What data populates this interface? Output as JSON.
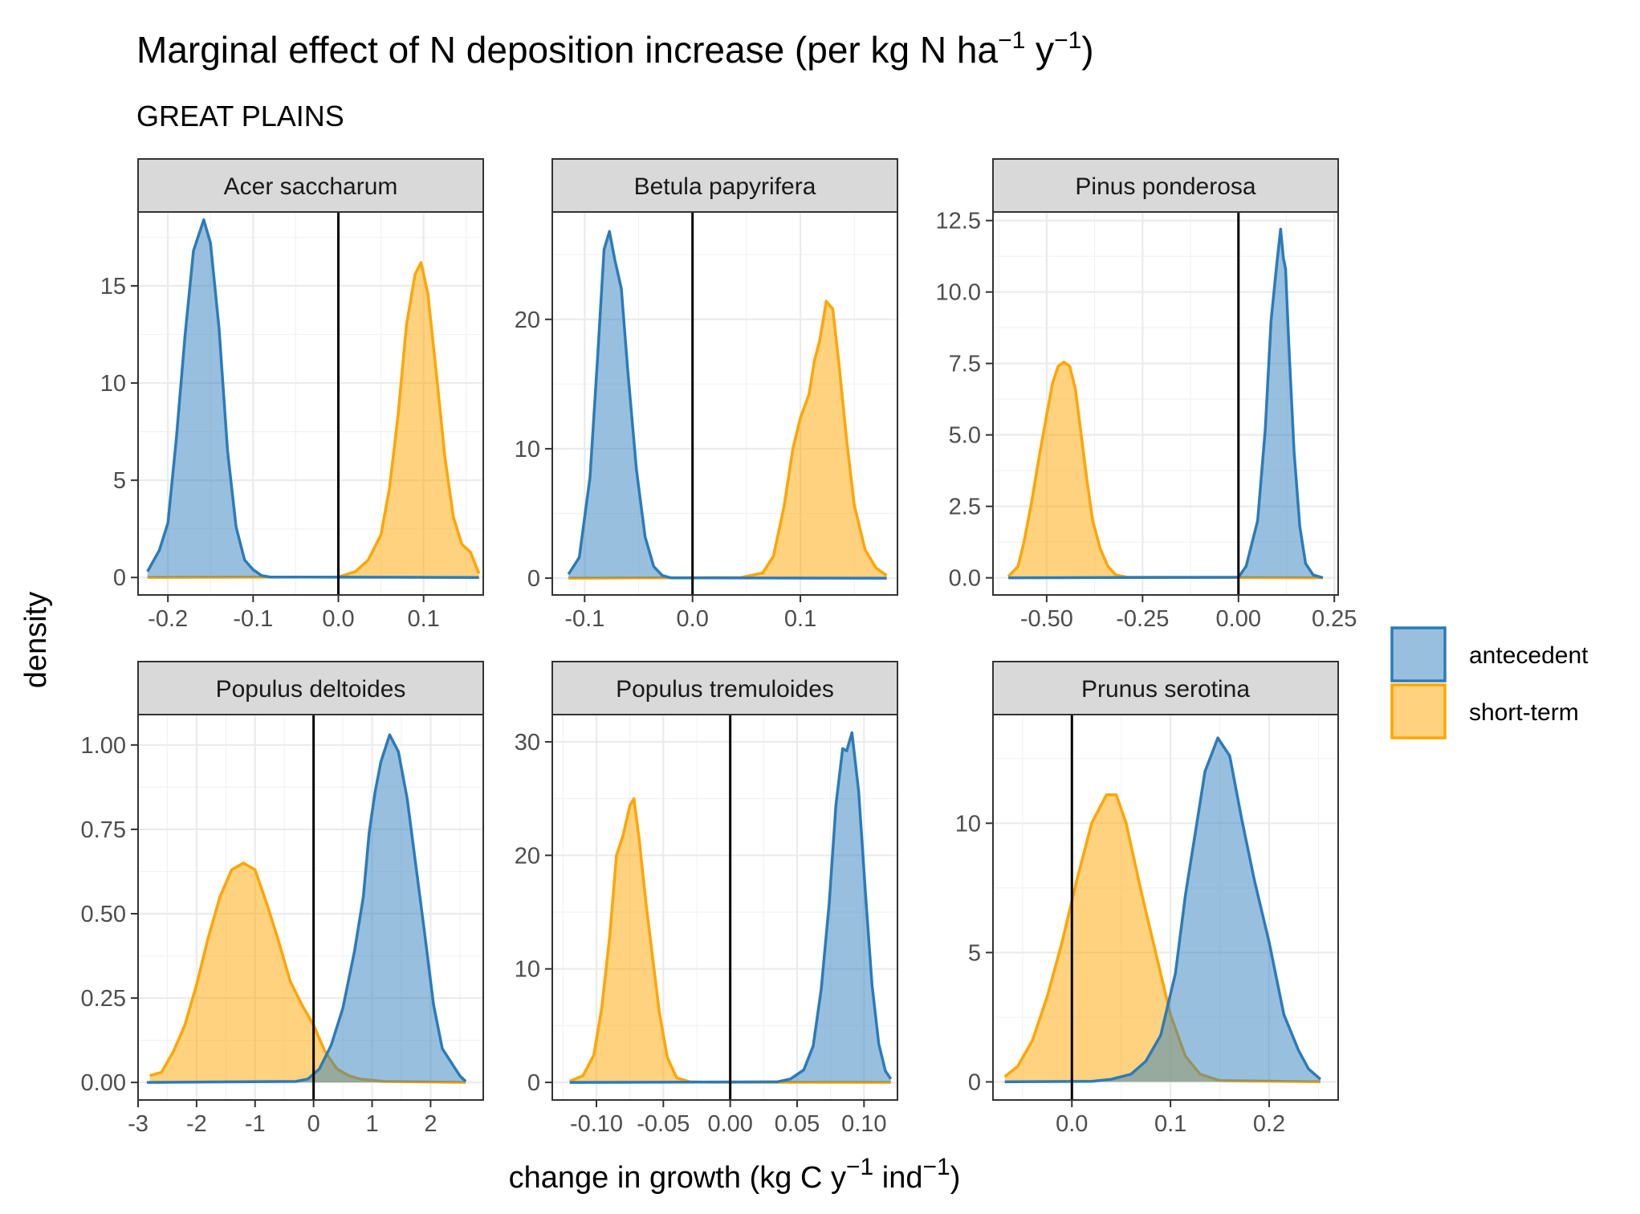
{
  "title_parts": [
    "Marginal effect of N deposition increase (per kg N ha",
    "−1",
    " y",
    "−1",
    ")"
  ],
  "subtitle": "GREAT PLAINS",
  "xlabel_parts": [
    "change in growth (kg C y",
    "−1",
    " ind",
    "−1",
    ")"
  ],
  "ylabel": "density",
  "legend": [
    {
      "label": "antecedent",
      "fill": "#3182bd",
      "stroke": "#2b7bba"
    },
    {
      "label": "short-term",
      "fill": "#ffa500",
      "stroke": "#ffa500"
    }
  ],
  "chart_data": [
    {
      "type": "area",
      "panel": "Acer saccharum",
      "xlim": [
        -0.235,
        0.17
      ],
      "ylim": [
        -0.9,
        18.8
      ],
      "x_ticks": [
        -0.2,
        -0.1,
        0.0,
        0.1
      ],
      "x_tick_labels": [
        "-0.2",
        "-0.1",
        "0.0",
        "0.1"
      ],
      "y_ticks": [
        0,
        5,
        10,
        15
      ],
      "y_tick_labels": [
        "0",
        "5",
        "10",
        "15"
      ],
      "vline": 0,
      "series": [
        {
          "name": "antecedent",
          "points": [
            [
              -0.224,
              0.3
            ],
            [
              -0.21,
              1.4
            ],
            [
              -0.2,
              2.8
            ],
            [
              -0.19,
              7.2
            ],
            [
              -0.18,
              12.4
            ],
            [
              -0.17,
              16.8
            ],
            [
              -0.158,
              18.4
            ],
            [
              -0.15,
              17.2
            ],
            [
              -0.14,
              12.8
            ],
            [
              -0.13,
              6.5
            ],
            [
              -0.12,
              2.6
            ],
            [
              -0.11,
              0.9
            ],
            [
              -0.1,
              0.4
            ],
            [
              -0.09,
              0.1
            ],
            [
              -0.08,
              0.02
            ],
            [
              0.165,
              0
            ]
          ]
        },
        {
          "name": "short-term",
          "points": [
            [
              -0.224,
              0
            ],
            [
              0.0,
              0.02
            ],
            [
              0.02,
              0.3
            ],
            [
              0.035,
              0.9
            ],
            [
              0.05,
              2.2
            ],
            [
              0.06,
              4.6
            ],
            [
              0.07,
              8.3
            ],
            [
              0.08,
              13.0
            ],
            [
              0.09,
              15.6
            ],
            [
              0.097,
              16.2
            ],
            [
              0.105,
              14.6
            ],
            [
              0.115,
              10.5
            ],
            [
              0.125,
              6.2
            ],
            [
              0.135,
              3.1
            ],
            [
              0.145,
              1.7
            ],
            [
              0.155,
              1.3
            ],
            [
              0.165,
              0.2
            ]
          ]
        }
      ]
    },
    {
      "type": "area",
      "panel": "Betula papyrifera",
      "xlim": [
        -0.13,
        0.19
      ],
      "ylim": [
        -1.3,
        28.3
      ],
      "x_ticks": [
        -0.1,
        0.0,
        0.1
      ],
      "x_tick_labels": [
        "-0.1",
        "0.0",
        "0.1"
      ],
      "y_ticks": [
        0,
        10,
        20
      ],
      "y_tick_labels": [
        "0",
        "10",
        "20"
      ],
      "vline": 0,
      "series": [
        {
          "name": "antecedent",
          "points": [
            [
              -0.115,
              0.3
            ],
            [
              -0.105,
              1.6
            ],
            [
              -0.095,
              7.8
            ],
            [
              -0.088,
              17.0
            ],
            [
              -0.082,
              25.4
            ],
            [
              -0.077,
              26.8
            ],
            [
              -0.072,
              24.6
            ],
            [
              -0.066,
              22.4
            ],
            [
              -0.06,
              16.0
            ],
            [
              -0.052,
              8.4
            ],
            [
              -0.044,
              3.2
            ],
            [
              -0.036,
              0.9
            ],
            [
              -0.028,
              0.2
            ],
            [
              -0.02,
              0.02
            ],
            [
              0.18,
              0
            ]
          ]
        },
        {
          "name": "short-term",
          "points": [
            [
              -0.115,
              0
            ],
            [
              0.045,
              0.05
            ],
            [
              0.065,
              0.4
            ],
            [
              0.075,
              1.7
            ],
            [
              0.085,
              5.6
            ],
            [
              0.093,
              10.0
            ],
            [
              0.1,
              12.4
            ],
            [
              0.108,
              14.2
            ],
            [
              0.113,
              16.8
            ],
            [
              0.118,
              18.4
            ],
            [
              0.124,
              21.4
            ],
            [
              0.13,
              20.8
            ],
            [
              0.136,
              16.4
            ],
            [
              0.143,
              10.6
            ],
            [
              0.15,
              5.6
            ],
            [
              0.16,
              2.2
            ],
            [
              0.17,
              0.8
            ],
            [
              0.18,
              0.2
            ]
          ]
        }
      ]
    },
    {
      "type": "area",
      "panel": "Pinus ponderosa",
      "xlim": [
        -0.64,
        0.26
      ],
      "ylim": [
        -0.6,
        12.8
      ],
      "x_ticks": [
        -0.5,
        -0.25,
        0.0,
        0.25
      ],
      "x_tick_labels": [
        "-0.50",
        "-0.25",
        "0.00",
        "0.25"
      ],
      "y_ticks": [
        0.0,
        2.5,
        5.0,
        7.5,
        10.0,
        12.5
      ],
      "y_tick_labels": [
        "0.0",
        "2.5",
        "5.0",
        "7.5",
        "10.0",
        "12.5"
      ],
      "vline": 0,
      "series": [
        {
          "name": "antecedent",
          "points": [
            [
              -0.6,
              0
            ],
            [
              0.0,
              0.02
            ],
            [
              0.02,
              0.4
            ],
            [
              0.05,
              2.0
            ],
            [
              0.07,
              5.2
            ],
            [
              0.085,
              9.0
            ],
            [
              0.1,
              11.0
            ],
            [
              0.11,
              12.2
            ],
            [
              0.117,
              11.2
            ],
            [
              0.123,
              10.8
            ],
            [
              0.132,
              8.0
            ],
            [
              0.145,
              4.4
            ],
            [
              0.16,
              1.8
            ],
            [
              0.175,
              0.5
            ],
            [
              0.195,
              0.1
            ],
            [
              0.22,
              0
            ]
          ]
        },
        {
          "name": "short-term",
          "points": [
            [
              -0.6,
              0.05
            ],
            [
              -0.575,
              0.4
            ],
            [
              -0.56,
              1.2
            ],
            [
              -0.54,
              2.6
            ],
            [
              -0.52,
              4.2
            ],
            [
              -0.5,
              5.7
            ],
            [
              -0.485,
              6.8
            ],
            [
              -0.47,
              7.4
            ],
            [
              -0.455,
              7.55
            ],
            [
              -0.44,
              7.4
            ],
            [
              -0.425,
              6.6
            ],
            [
              -0.41,
              5.0
            ],
            [
              -0.395,
              3.4
            ],
            [
              -0.38,
              2.0
            ],
            [
              -0.36,
              1.0
            ],
            [
              -0.34,
              0.4
            ],
            [
              -0.32,
              0.1
            ],
            [
              -0.29,
              0.02
            ],
            [
              0.22,
              0
            ]
          ]
        }
      ]
    },
    {
      "type": "area",
      "panel": "Populus deltoides",
      "xlim": [
        -3.0,
        2.9
      ],
      "ylim": [
        -0.052,
        1.09
      ],
      "x_ticks": [
        -3,
        -2,
        -1,
        0,
        1,
        2
      ],
      "x_tick_labels": [
        "-3",
        "-2",
        "-1",
        "0",
        "1",
        "2"
      ],
      "y_ticks": [
        0.0,
        0.25,
        0.5,
        0.75,
        1.0
      ],
      "y_tick_labels": [
        "0.00",
        "0.25",
        "0.50",
        "0.75",
        "1.00"
      ],
      "vline": 0,
      "series": [
        {
          "name": "antecedent",
          "points": [
            [
              -2.85,
              0
            ],
            [
              -0.3,
              0.003
            ],
            [
              -0.1,
              0.01
            ],
            [
              0.1,
              0.04
            ],
            [
              0.3,
              0.11
            ],
            [
              0.5,
              0.22
            ],
            [
              0.7,
              0.39
            ],
            [
              0.85,
              0.55
            ],
            [
              0.95,
              0.74
            ],
            [
              1.05,
              0.86
            ],
            [
              1.15,
              0.95
            ],
            [
              1.3,
              1.03
            ],
            [
              1.45,
              0.98
            ],
            [
              1.6,
              0.84
            ],
            [
              1.75,
              0.64
            ],
            [
              1.9,
              0.44
            ],
            [
              2.05,
              0.23
            ],
            [
              2.2,
              0.1
            ],
            [
              2.35,
              0.06
            ],
            [
              2.5,
              0.02
            ],
            [
              2.6,
              0.003
            ]
          ]
        },
        {
          "name": "short-term",
          "points": [
            [
              -2.8,
              0.02
            ],
            [
              -2.6,
              0.03
            ],
            [
              -2.4,
              0.09
            ],
            [
              -2.2,
              0.17
            ],
            [
              -2.0,
              0.29
            ],
            [
              -1.8,
              0.43
            ],
            [
              -1.6,
              0.55
            ],
            [
              -1.4,
              0.63
            ],
            [
              -1.2,
              0.65
            ],
            [
              -1.0,
              0.63
            ],
            [
              -0.8,
              0.53
            ],
            [
              -0.6,
              0.42
            ],
            [
              -0.4,
              0.3
            ],
            [
              -0.2,
              0.23
            ],
            [
              0.0,
              0.17
            ],
            [
              0.2,
              0.09
            ],
            [
              0.4,
              0.04
            ],
            [
              0.6,
              0.02
            ],
            [
              0.8,
              0.01
            ],
            [
              1.2,
              0.003
            ],
            [
              2.6,
              0
            ]
          ]
        }
      ]
    },
    {
      "type": "area",
      "panel": "Populus tremuloides",
      "xlim": [
        -0.133,
        0.125
      ],
      "ylim": [
        -1.55,
        32.4
      ],
      "x_ticks": [
        -0.1,
        -0.05,
        0.0,
        0.05,
        0.1
      ],
      "x_tick_labels": [
        "-0.10",
        "-0.05",
        "0.00",
        "0.05",
        "0.10"
      ],
      "y_ticks": [
        0,
        10,
        20,
        30
      ],
      "y_tick_labels": [
        "0",
        "10",
        "20",
        "30"
      ],
      "vline": 0,
      "series": [
        {
          "name": "antecedent",
          "points": [
            [
              -0.12,
              0
            ],
            [
              0.035,
              0.05
            ],
            [
              0.045,
              0.3
            ],
            [
              0.055,
              1.1
            ],
            [
              0.062,
              3.2
            ],
            [
              0.068,
              8.2
            ],
            [
              0.074,
              15.8
            ],
            [
              0.079,
              24.4
            ],
            [
              0.084,
              29.4
            ],
            [
              0.087,
              29.2
            ],
            [
              0.091,
              30.8
            ],
            [
              0.096,
              25.6
            ],
            [
              0.101,
              16.8
            ],
            [
              0.106,
              8.6
            ],
            [
              0.111,
              3.4
            ],
            [
              0.116,
              1.0
            ],
            [
              0.12,
              0.3
            ]
          ]
        },
        {
          "name": "short-term",
          "points": [
            [
              -0.12,
              0.1
            ],
            [
              -0.11,
              0.6
            ],
            [
              -0.102,
              2.4
            ],
            [
              -0.096,
              6.6
            ],
            [
              -0.09,
              13.0
            ],
            [
              -0.085,
              20.0
            ],
            [
              -0.08,
              21.8
            ],
            [
              -0.075,
              24.4
            ],
            [
              -0.072,
              25.0
            ],
            [
              -0.068,
              21.4
            ],
            [
              -0.063,
              15.8
            ],
            [
              -0.058,
              11.0
            ],
            [
              -0.053,
              6.2
            ],
            [
              -0.047,
              2.2
            ],
            [
              -0.04,
              0.4
            ],
            [
              -0.03,
              0.05
            ],
            [
              -0.015,
              0.01
            ],
            [
              0.12,
              0
            ]
          ]
        }
      ]
    },
    {
      "type": "area",
      "panel": "Prunus serotina",
      "xlim": [
        -0.08,
        0.27
      ],
      "ylim": [
        -0.7,
        14.2
      ],
      "x_ticks": [
        0.0,
        0.1,
        0.2
      ],
      "x_tick_labels": [
        "0.0",
        "0.1",
        "0.2"
      ],
      "y_ticks": [
        0,
        5,
        10
      ],
      "y_tick_labels": [
        "0",
        "5",
        "10"
      ],
      "vline": 0,
      "series": [
        {
          "name": "antecedent",
          "points": [
            [
              -0.068,
              0
            ],
            [
              0.02,
              0.02
            ],
            [
              0.04,
              0.1
            ],
            [
              0.06,
              0.3
            ],
            [
              0.075,
              0.8
            ],
            [
              0.09,
              1.8
            ],
            [
              0.105,
              4.2
            ],
            [
              0.115,
              7.2
            ],
            [
              0.125,
              9.6
            ],
            [
              0.135,
              12.0
            ],
            [
              0.148,
              13.3
            ],
            [
              0.16,
              12.6
            ],
            [
              0.172,
              10.2
            ],
            [
              0.185,
              7.8
            ],
            [
              0.2,
              5.4
            ],
            [
              0.215,
              2.6
            ],
            [
              0.23,
              1.2
            ],
            [
              0.24,
              0.5
            ],
            [
              0.252,
              0.1
            ]
          ]
        },
        {
          "name": "short-term",
          "points": [
            [
              -0.068,
              0.2
            ],
            [
              -0.055,
              0.6
            ],
            [
              -0.04,
              1.6
            ],
            [
              -0.025,
              3.3
            ],
            [
              -0.01,
              5.4
            ],
            [
              0.005,
              7.8
            ],
            [
              0.02,
              10.0
            ],
            [
              0.035,
              11.1
            ],
            [
              0.045,
              11.1
            ],
            [
              0.055,
              10.0
            ],
            [
              0.07,
              7.4
            ],
            [
              0.085,
              5.0
            ],
            [
              0.1,
              2.6
            ],
            [
              0.115,
              1.0
            ],
            [
              0.13,
              0.3
            ],
            [
              0.15,
              0.05
            ],
            [
              0.252,
              0
            ]
          ]
        }
      ]
    }
  ]
}
